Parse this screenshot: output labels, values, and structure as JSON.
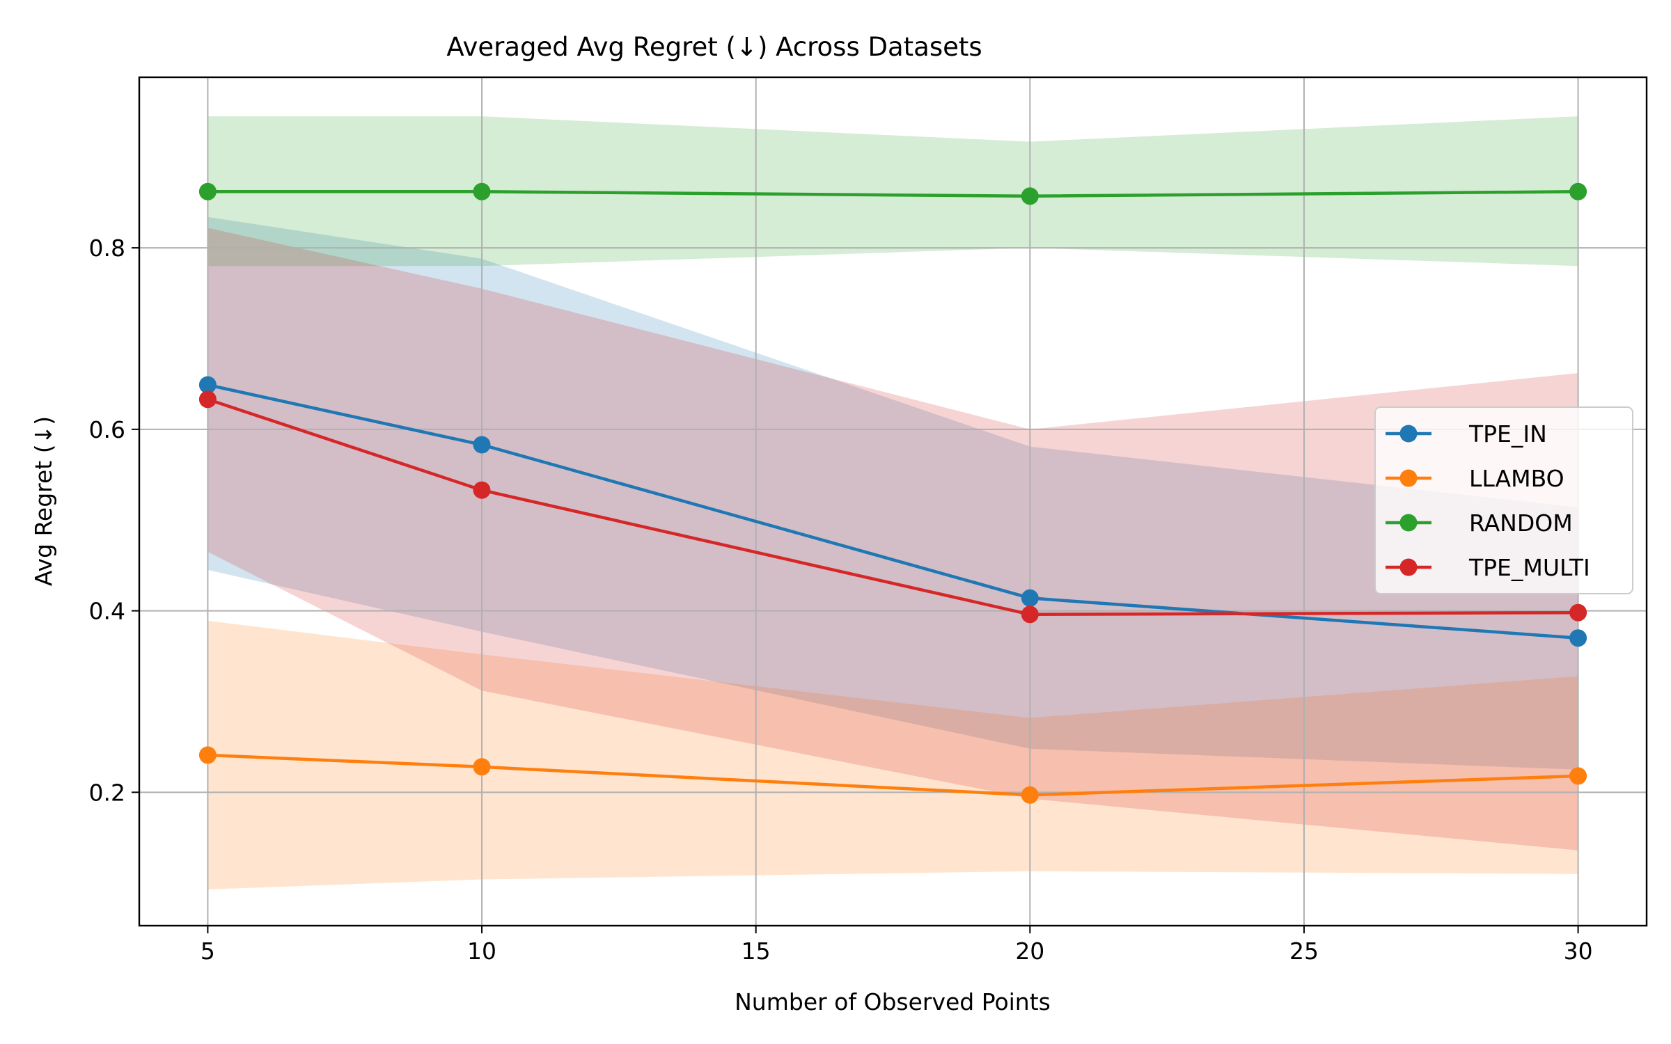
{
  "chart_data": {
    "type": "line",
    "title": "Averaged Avg Regret (↓) Across Datasets",
    "xlabel": "Number of Observed Points",
    "ylabel": "Avg Regret (↓)",
    "x": [
      5,
      10,
      20,
      30
    ],
    "xticks": [
      5,
      10,
      15,
      20,
      25,
      30
    ],
    "xtick_labels": [
      "5",
      "10",
      "15",
      "20",
      "25",
      "30"
    ],
    "yticks": [
      0.2,
      0.4,
      0.6,
      0.8
    ],
    "ytick_labels": [
      "0.2",
      "0.4",
      "0.6",
      "0.8"
    ],
    "xlim": [
      3.75,
      31.25
    ],
    "ylim": [
      0.053,
      0.988
    ],
    "grid": true,
    "legend_position": "center-right",
    "series": [
      {
        "name": "TPE_IN",
        "color": "#1f77b4",
        "values": [
          0.649,
          0.583,
          0.414,
          0.37
        ],
        "lower": [
          0.445,
          0.377,
          0.248,
          0.225
        ],
        "upper": [
          0.834,
          0.788,
          0.581,
          0.514
        ]
      },
      {
        "name": "LLAMBO",
        "color": "#ff7f0e",
        "values": [
          0.241,
          0.228,
          0.197,
          0.218
        ],
        "lower": [
          0.093,
          0.104,
          0.113,
          0.11
        ],
        "upper": [
          0.389,
          0.352,
          0.282,
          0.328
        ]
      },
      {
        "name": "RANDOM",
        "color": "#2ca02c",
        "values": [
          0.862,
          0.862,
          0.857,
          0.862
        ],
        "lower": [
          0.78,
          0.78,
          0.8,
          0.78
        ],
        "upper": [
          0.945,
          0.945,
          0.917,
          0.945
        ]
      },
      {
        "name": "TPE_MULTI",
        "color": "#d62728",
        "values": [
          0.633,
          0.533,
          0.396,
          0.398
        ],
        "lower": [
          0.465,
          0.312,
          0.193,
          0.136
        ],
        "upper": [
          0.822,
          0.755,
          0.6,
          0.662
        ]
      }
    ]
  }
}
